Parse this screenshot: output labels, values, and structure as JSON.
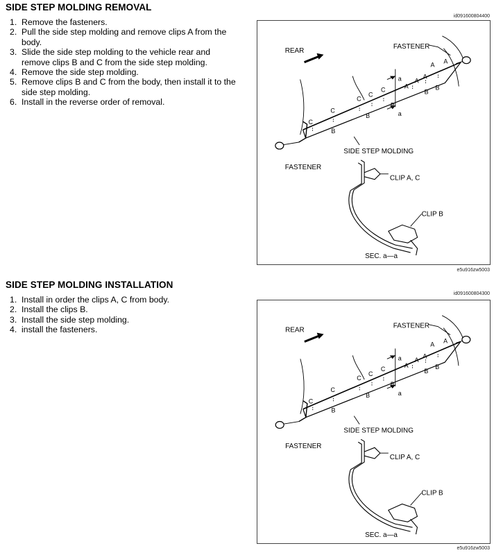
{
  "removal": {
    "title": "SIDE STEP MOLDING REMOVAL",
    "doc_id": "id091600804400",
    "steps": [
      {
        "num": "1.",
        "text": "Remove the fasteners."
      },
      {
        "num": "2.",
        "text": "Pull the side step molding and remove clips A from the body."
      },
      {
        "num": "3.",
        "text": "Slide the side step molding to the vehicle rear and remove clips B and C from the side step molding."
      },
      {
        "num": "4.",
        "text": "Remove the side step molding."
      },
      {
        "num": "5.",
        "text": "Remove clips B and C from the body, then install it to the side step molding."
      },
      {
        "num": "6.",
        "text": "Install in the reverse order of removal."
      }
    ],
    "figure_code": "e5u916zw5003"
  },
  "installation": {
    "title": "SIDE STEP MOLDING INSTALLATION",
    "doc_id": "id091600804300",
    "steps": [
      {
        "num": "1.",
        "text": "Install in order the clips A, C from body."
      },
      {
        "num": "2.",
        "text": "Install the clips B."
      },
      {
        "num": "3.",
        "text": "Install the side step molding."
      },
      {
        "num": "4.",
        "text": "install the fasteners."
      }
    ],
    "figure_code": "e5u916zw5003"
  },
  "figure_labels": {
    "rear": "REAR",
    "fastener": "FASTENER",
    "side_step_molding": "SIDE STEP MOLDING",
    "clip_a_c": "CLIP A, C",
    "clip_b": "CLIP B",
    "section": "SEC. a—a",
    "a": "A",
    "b": "B",
    "c": "C",
    "sec_mark": "a"
  }
}
